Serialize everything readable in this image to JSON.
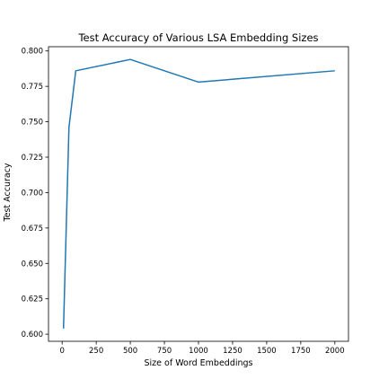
{
  "chart_data": {
    "type": "line",
    "title": "Test Accuracy of Various LSA Embedding Sizes",
    "xlabel": "Size of Word Embeddings",
    "ylabel": "Test Accuracy",
    "xlim": [
      -100,
      2100
    ],
    "ylim": [
      0.595,
      0.803
    ],
    "xticks": [
      0,
      250,
      500,
      750,
      1000,
      1250,
      1500,
      1750,
      2000
    ],
    "yticks": [
      0.6,
      0.625,
      0.65,
      0.675,
      0.7,
      0.725,
      0.75,
      0.775,
      0.8
    ],
    "grid": false,
    "series": [
      {
        "color": "#1f77b4",
        "x": [
          10,
          50,
          100,
          500,
          1000,
          2000
        ],
        "y": [
          0.604,
          0.746,
          0.786,
          0.794,
          0.778,
          0.786
        ]
      }
    ]
  }
}
